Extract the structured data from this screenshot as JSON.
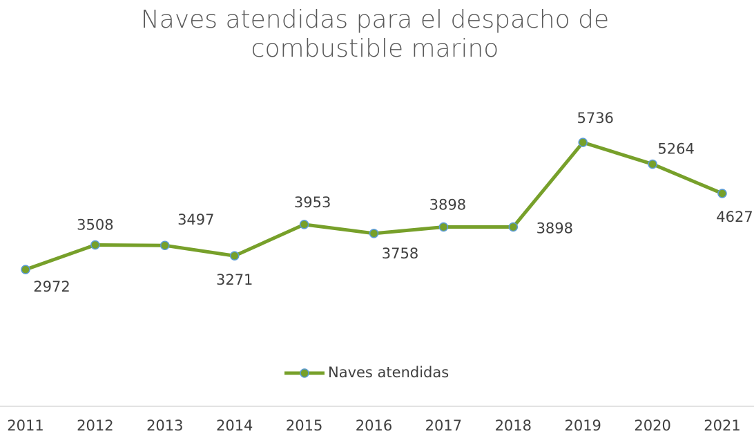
{
  "chart_data": {
    "type": "line",
    "title": [
      "Naves atendidas para el despacho de",
      "combustible marino"
    ],
    "categories": [
      "2011",
      "2012",
      "2013",
      "2014",
      "2015",
      "2016",
      "2017",
      "2018",
      "2019",
      "2020",
      "2021"
    ],
    "series": [
      {
        "name": "Naves atendidas",
        "color": "#77a02a",
        "marker_edge": "#5b9bd5",
        "values": [
          2972,
          3508,
          3497,
          3271,
          3953,
          3758,
          3898,
          3898,
          5736,
          5264,
          4627
        ]
      }
    ],
    "ylim": [
      0,
      7000
    ],
    "legend": "bottom"
  }
}
